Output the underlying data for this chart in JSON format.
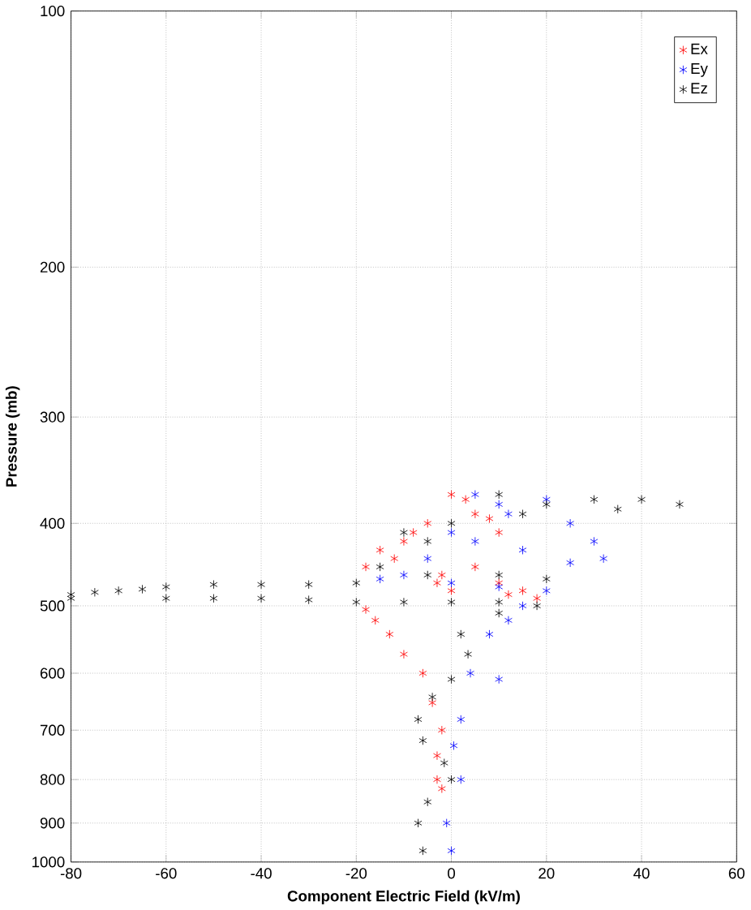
{
  "chart_data": {
    "type": "scatter",
    "xlabel": "Component Electric Field (kV/m)",
    "ylabel": "Pressure (mb)",
    "xlim": [
      -80,
      60
    ],
    "xticks": [
      -80,
      -60,
      -40,
      -20,
      0,
      20,
      40,
      60
    ],
    "ylim": [
      1000,
      100
    ],
    "yticks": [
      100,
      200,
      300,
      400,
      500,
      600,
      700,
      800,
      900,
      1000
    ],
    "log": "y",
    "grid": true,
    "legend": "top right",
    "marker": "cross",
    "series": [
      {
        "name": "Ex",
        "color": "#ff0000",
        "x": [
          -15,
          -10,
          -5,
          0,
          3,
          5,
          -8,
          -12,
          -18,
          -2,
          5,
          10,
          15,
          18,
          12,
          0,
          -3,
          8,
          10,
          -18,
          -16,
          -13,
          -10,
          -6,
          -4,
          -2,
          -3,
          -3,
          -2
        ],
        "values": [
          430,
          420,
          400,
          370,
          375,
          390,
          410,
          440,
          450,
          460,
          450,
          470,
          480,
          490,
          485,
          480,
          470,
          395,
          410,
          505,
          520,
          540,
          570,
          600,
          650,
          700,
          750,
          800,
          820
        ]
      },
      {
        "name": "Ey",
        "color": "#0000ff",
        "x": [
          5,
          10,
          12,
          20,
          25,
          30,
          32,
          25,
          15,
          5,
          0,
          -5,
          -10,
          -15,
          0,
          10,
          20,
          15,
          12,
          8,
          4,
          10,
          2,
          0.5,
          2,
          -1,
          0
        ],
        "values": [
          370,
          380,
          390,
          375,
          400,
          420,
          440,
          445,
          430,
          420,
          410,
          440,
          460,
          465,
          470,
          475,
          480,
          500,
          520,
          540,
          600,
          610,
          680,
          730,
          800,
          900,
          970
        ]
      },
      {
        "name": "Ez",
        "color": "#000000",
        "x": [
          10,
          20,
          30,
          40,
          48,
          35,
          15,
          0,
          -10,
          -5,
          -15,
          -5,
          10,
          20,
          -20,
          -30,
          -40,
          -50,
          -60,
          -65,
          -70,
          -75,
          -80,
          -80,
          -60,
          -50,
          -40,
          -30,
          -20,
          -10,
          0,
          10,
          18,
          10,
          2,
          3.5,
          0,
          -4,
          -7,
          -6,
          -1.5,
          0,
          -5,
          -7,
          -6
        ],
        "values": [
          370,
          380,
          375,
          375,
          380,
          385,
          390,
          400,
          410,
          420,
          450,
          460,
          460,
          465,
          470,
          472,
          472,
          472,
          475,
          478,
          480,
          482,
          485,
          490,
          490,
          490,
          490,
          492,
          495,
          495,
          495,
          495,
          500,
          510,
          540,
          570,
          610,
          640,
          680,
          720,
          765,
          800,
          850,
          900,
          970
        ]
      }
    ]
  }
}
